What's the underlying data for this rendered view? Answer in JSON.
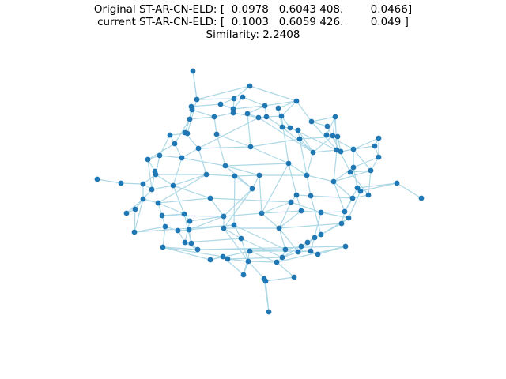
{
  "title": {
    "line1": "Original ST-AR-CN-ELD: [  0.0978   0.6043 408.        0.0466]",
    "line2": "current ST-AR-CN-ELD: [  0.1003   0.6059 426.        0.049 ]",
    "line3": "Similarity: 2.2408"
  },
  "colors": {
    "node": "#1f77b4",
    "edge": "#add8e6",
    "background": "#ffffff"
  }
}
